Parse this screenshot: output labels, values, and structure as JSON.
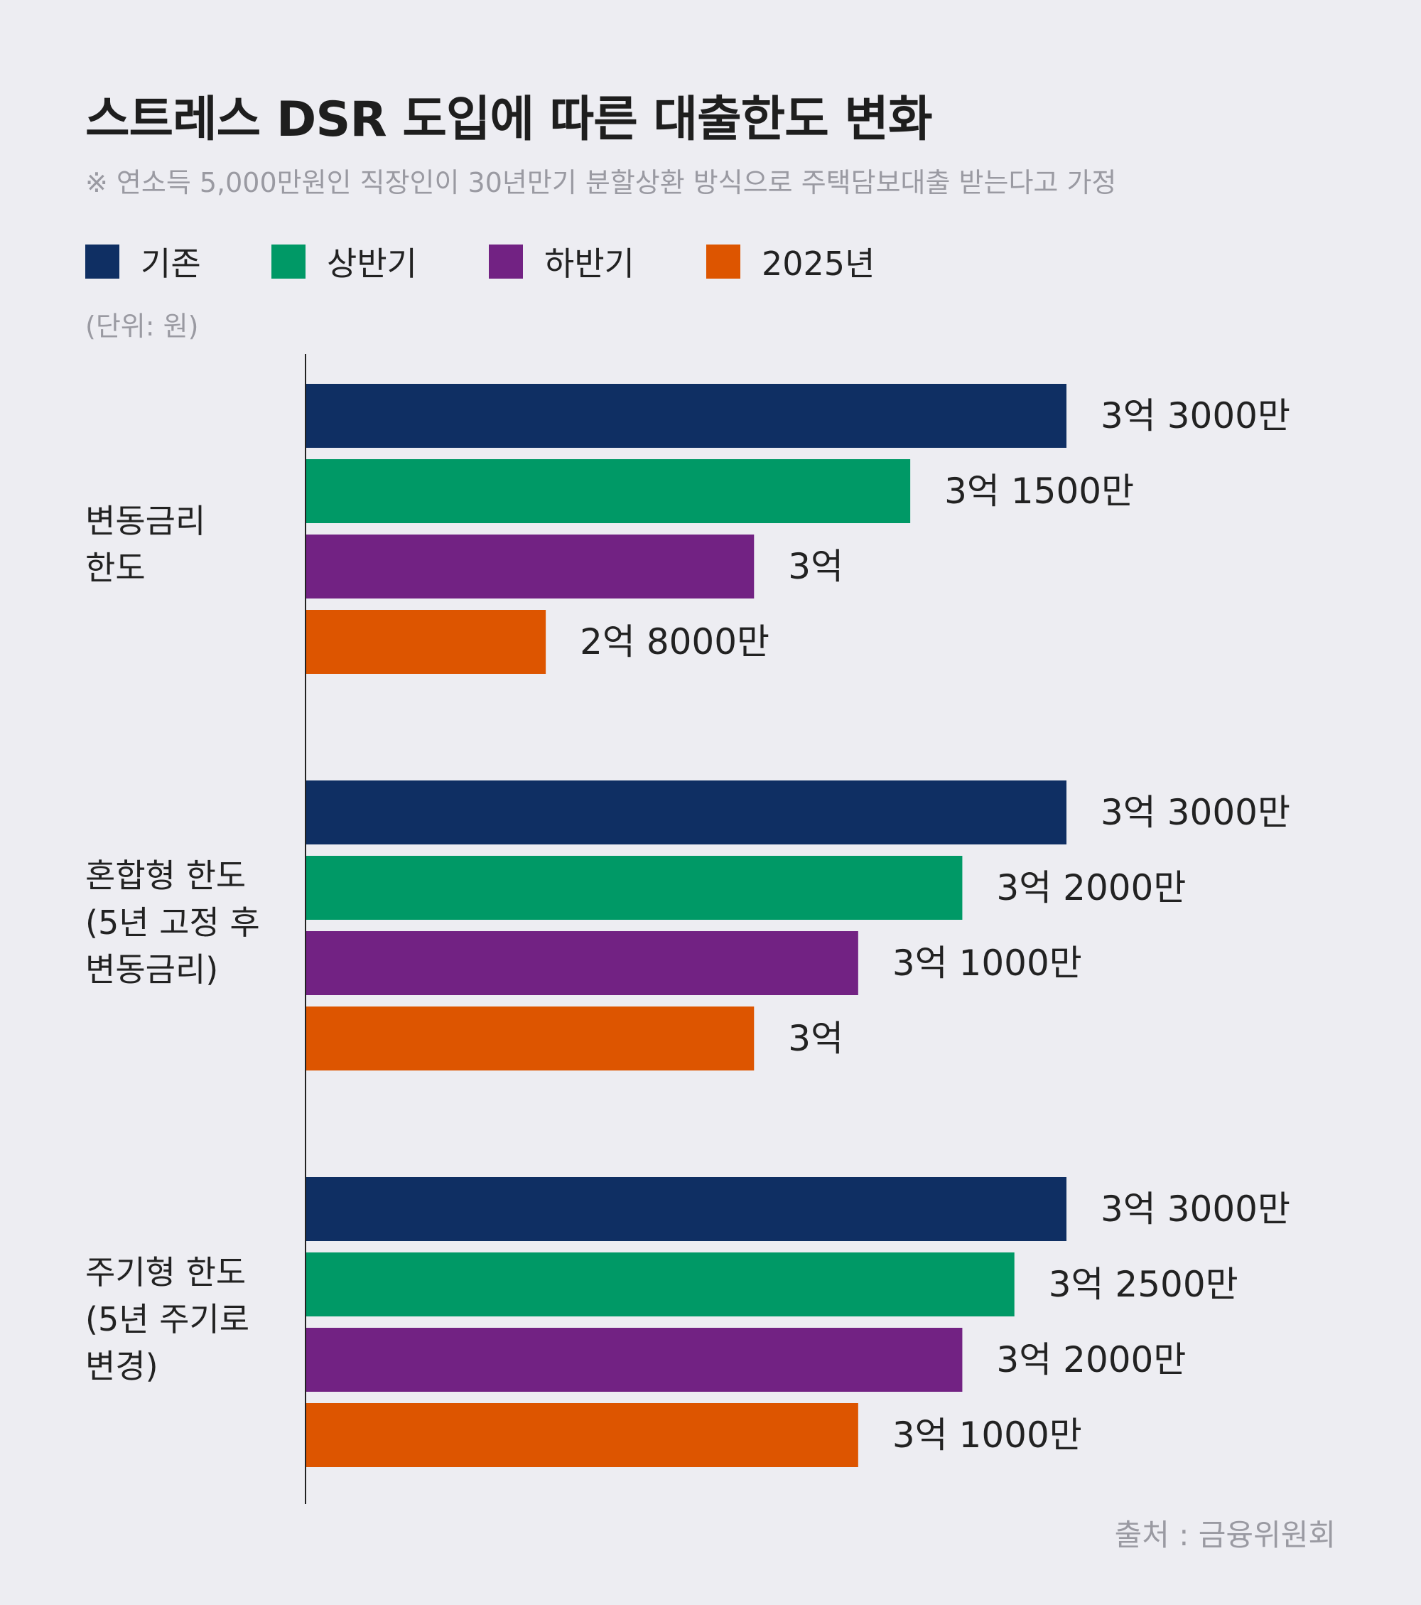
{
  "title": "스트레스 DSR 도입에 따른 대출한도 변화",
  "subtitle": "※ 연소득 5,000만원인 직장인이 30년만기 분할상환 방식으로 주택담보대출 받는다고 가정",
  "unit_label": "(단위: 원)",
  "source": "출처 : 금융위원회",
  "colors": {
    "background": "#ededf2",
    "기존": "#0f2f63",
    "상반기": "#009966",
    "하반기": "#722283",
    "2025년": "#dd5500"
  },
  "chart_data": {
    "type": "bar",
    "orientation": "horizontal",
    "title": "스트레스 DSR 도입에 따른 대출한도 변화",
    "unit": "원",
    "categories": [
      [
        "변동금리",
        "한도"
      ],
      [
        "혼합형 한도",
        "(5년 고정 후",
        "변동금리)"
      ],
      [
        "주기형 한도",
        "(5년 주기로",
        "변경)"
      ]
    ],
    "legend": [
      "기존",
      "상반기",
      "하반기",
      "2025년"
    ],
    "legend_position": "top",
    "xlim": [
      0,
      33000
    ],
    "value_unit": "만원",
    "series": [
      {
        "name": "기존",
        "color": "#0f2f63",
        "values": [
          33000,
          33000,
          33000
        ],
        "labels": [
          "3억 3000만",
          "3억 3000만",
          "3억 3000만"
        ]
      },
      {
        "name": "상반기",
        "color": "#009966",
        "values": [
          31500,
          32000,
          32500
        ],
        "labels": [
          "3억 1500만",
          "3억 2000만",
          "3억 2500만"
        ]
      },
      {
        "name": "하반기",
        "color": "#722283",
        "values": [
          30000,
          31000,
          32000
        ],
        "labels": [
          "3억",
          "3억 1000만",
          "3억 2000만"
        ]
      },
      {
        "name": "2025년",
        "color": "#dd5500",
        "values": [
          28000,
          30000,
          31000
        ],
        "labels": [
          "2억 8000만",
          "3억",
          "3억 1000만"
        ]
      }
    ]
  }
}
